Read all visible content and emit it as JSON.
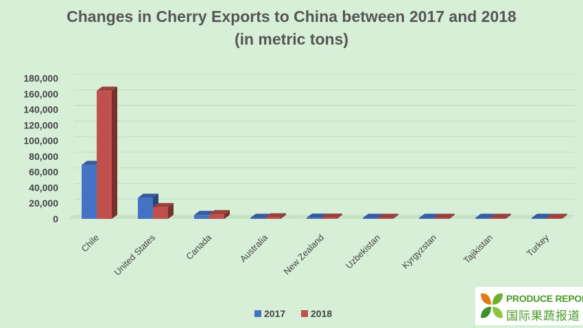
{
  "chart_data": {
    "type": "bar",
    "title_line1": "Changes in Cherry Exports to China between 2017 and 2018",
    "title_line2": "(in metric tons)",
    "categories": [
      "Chile",
      "United States",
      "Canada",
      "Australia",
      "New Zealand",
      "Uzbekistan",
      "Kyrgyzstan",
      "Tajikistan",
      "Turkey"
    ],
    "series": [
      {
        "name": "2017",
        "color": "#4472c4",
        "values": [
          69000,
          27000,
          5000,
          800,
          1500,
          300,
          300,
          200,
          200
        ]
      },
      {
        "name": "2018",
        "color": "#c0504d",
        "values": [
          164000,
          15000,
          6000,
          2000,
          1500,
          500,
          500,
          400,
          300
        ]
      }
    ],
    "ylim": [
      0,
      180000
    ],
    "yticks": [
      "0",
      "20,000",
      "40,000",
      "60,000",
      "80,000",
      "100,000",
      "120,000",
      "140,000",
      "160,000",
      "180,000"
    ],
    "grid": true,
    "legend_position": "bottom"
  },
  "logo": {
    "text_en": "PRODUCE REPORT",
    "text_cn": "国际果蔬报道"
  }
}
